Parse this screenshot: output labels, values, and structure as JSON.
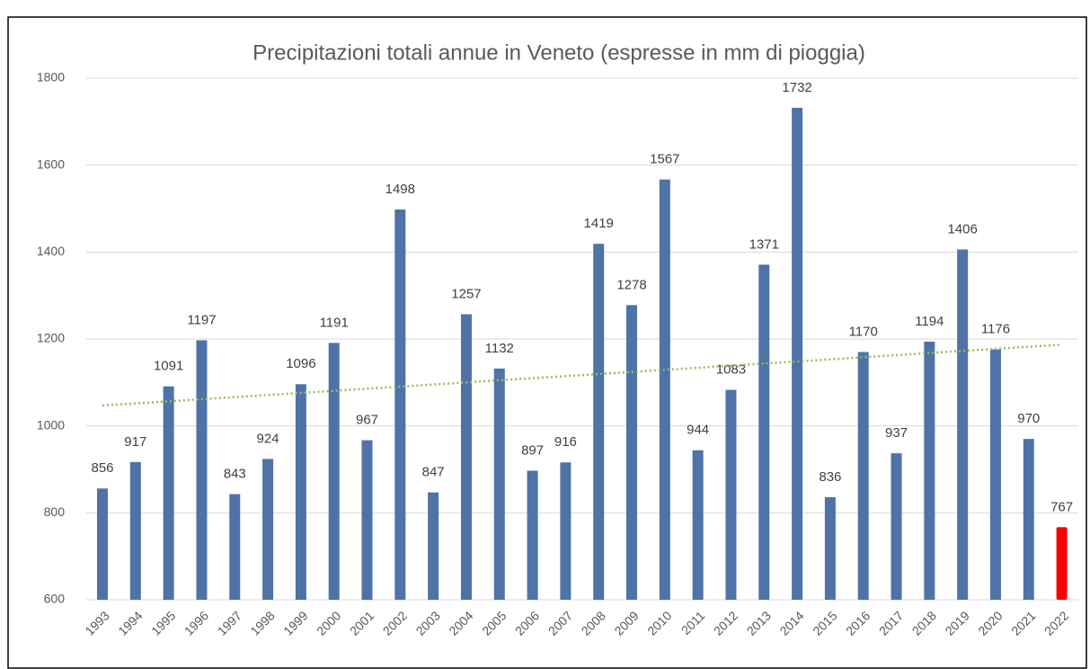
{
  "chart_data": {
    "type": "bar",
    "title": "Precipitazioni totali annue in Veneto (espresse in mm di pioggia)",
    "categories": [
      "1993",
      "1994",
      "1995",
      "1996",
      "1997",
      "1998",
      "1999",
      "2000",
      "2001",
      "2002",
      "2003",
      "2004",
      "2005",
      "2006",
      "2007",
      "2008",
      "2009",
      "2010",
      "2011",
      "2012",
      "2013",
      "2014",
      "2015",
      "2016",
      "2017",
      "2018",
      "2019",
      "2020",
      "2021",
      "2022"
    ],
    "values": [
      856,
      917,
      1091,
      1197,
      843,
      924,
      1096,
      1191,
      967,
      1498,
      847,
      1257,
      1132,
      897,
      916,
      1419,
      1278,
      1567,
      944,
      1083,
      1371,
      1732,
      836,
      1170,
      937,
      1194,
      1406,
      1176,
      970,
      767
    ],
    "colors": [
      "#4e73a6",
      "#4e73a6",
      "#4e73a6",
      "#4e73a6",
      "#4e73a6",
      "#4e73a6",
      "#4e73a6",
      "#4e73a6",
      "#4e73a6",
      "#4e73a6",
      "#4e73a6",
      "#4e73a6",
      "#4e73a6",
      "#4e73a6",
      "#4e73a6",
      "#4e73a6",
      "#4e73a6",
      "#4e73a6",
      "#4e73a6",
      "#4e73a6",
      "#4e73a6",
      "#4e73a6",
      "#4e73a6",
      "#4e73a6",
      "#4e73a6",
      "#4e73a6",
      "#4e73a6",
      "#4e73a6",
      "#4e73a6",
      "#ff0000"
    ],
    "trendline": {
      "values": [
        1047,
        1187
      ],
      "color": "#9bbb59"
    },
    "ylim": [
      600,
      1800
    ],
    "yticks": [
      600,
      800,
      1000,
      1200,
      1400,
      1600,
      1800
    ],
    "grid": true
  }
}
